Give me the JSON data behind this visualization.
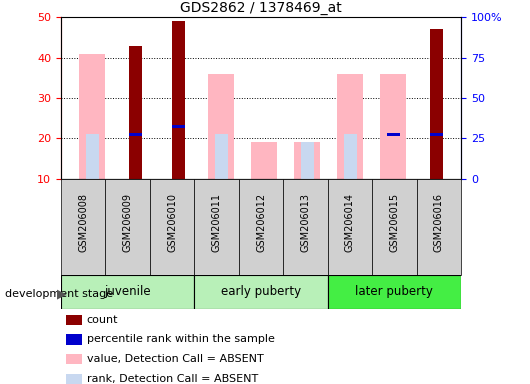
{
  "title": "GDS2862 / 1378469_at",
  "samples": [
    "GSM206008",
    "GSM206009",
    "GSM206010",
    "GSM206011",
    "GSM206012",
    "GSM206013",
    "GSM206014",
    "GSM206015",
    "GSM206016"
  ],
  "count_values": [
    0,
    43,
    49,
    0,
    0,
    0,
    0,
    0,
    47
  ],
  "percentile_rank_values": [
    0,
    21,
    23,
    0,
    0,
    0,
    0,
    21,
    21
  ],
  "value_absent": [
    41,
    0,
    0,
    36,
    19,
    19,
    36,
    36,
    0
  ],
  "rank_absent": [
    21,
    0,
    0,
    21,
    0,
    19,
    21,
    0,
    21
  ],
  "ylim_left": [
    10,
    50
  ],
  "ylim_right": [
    0,
    100
  ],
  "y_ticks_left": [
    10,
    20,
    30,
    40,
    50
  ],
  "y_ticks_right_labels": [
    "0",
    "25",
    "50",
    "75",
    "100%"
  ],
  "color_count": "#8B0000",
  "color_percentile": "#0000CC",
  "color_value_absent": "#FFB6C1",
  "color_rank_absent": "#C8D8F0",
  "tick_bg_color": "#d0d0d0",
  "plot_bg": "#ffffff",
  "group_labels": [
    "juvenile",
    "early puberty",
    "later puberty"
  ],
  "group_colors": [
    "#b8f0b8",
    "#b8f0b8",
    "#44ee44"
  ],
  "group_starts": [
    0,
    3,
    6
  ],
  "group_ends": [
    3,
    6,
    9
  ],
  "legend_items": [
    [
      "#8B0000",
      "count"
    ],
    [
      "#0000CC",
      "percentile rank within the sample"
    ],
    [
      "#FFB6C1",
      "value, Detection Call = ABSENT"
    ],
    [
      "#C8D8F0",
      "rank, Detection Call = ABSENT"
    ]
  ]
}
